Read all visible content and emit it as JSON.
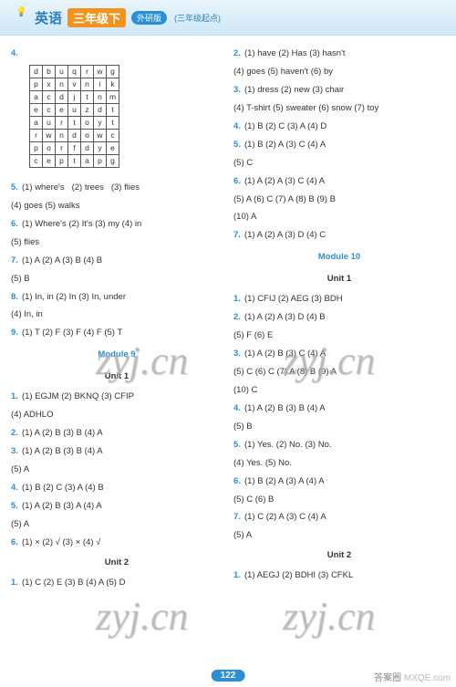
{
  "header": {
    "subject": "英语",
    "grade": "三年级下",
    "edition": "外研版",
    "sub": "(三年级起点)"
  },
  "page_number": "122",
  "corner_left": "答案圈",
  "corner_right": "MXQE.com",
  "watermark": "zyj.cn",
  "letter_grid": [
    [
      "d",
      "b",
      "u",
      "q",
      "r",
      "w",
      "g"
    ],
    [
      "p",
      "x",
      "n",
      "v",
      "n",
      "i",
      "k"
    ],
    [
      "a",
      "c",
      "d",
      "j",
      "t",
      "n",
      "m"
    ],
    [
      "e",
      "c",
      "e",
      "u",
      "z",
      "d",
      "t"
    ],
    [
      "a",
      "u",
      "r",
      "t",
      "o",
      "y",
      "t"
    ],
    [
      "r",
      "w",
      "n",
      "d",
      "o",
      "w",
      "c"
    ],
    [
      "p",
      "o",
      "r",
      "f",
      "d",
      "y",
      "e"
    ],
    [
      "c",
      "e",
      "p",
      "t",
      "a",
      "p",
      "g"
    ]
  ],
  "left": {
    "q4_num": "4.",
    "q5_num": "5.",
    "q5_parts": [
      "(1) where's",
      "(2) trees",
      "(3) flies"
    ],
    "q5_cont": "(4) goes   (5) walks",
    "q6_num": "6.",
    "q6_parts": "(1) Where's   (2) It's   (3) my   (4) in",
    "q6_cont": "(5) flies",
    "q7_num": "7.",
    "q7": "(1) A   (2) A   (3) B   (4) B",
    "q7_cont": "(5) B",
    "q8_num": "8.",
    "q8": "(1) In, in   (2) In   (3) In, under",
    "q8_cont": "(4) In, in",
    "q9_num": "9.",
    "q9": "(1) T   (2) F   (3) F   (4) F   (5) T",
    "module": "Module 9",
    "unit1": "Unit 1",
    "m9q1_num": "1.",
    "m9q1": "(1) EGJM   (2) BKNQ   (3) CFIP",
    "m9q1_cont": "(4) ADHLO",
    "m9q2_num": "2.",
    "m9q2": "(1) A   (2) B   (3) B   (4) A",
    "m9q3_num": "3.",
    "m9q3": "(1) A   (2) B   (3) B   (4) A",
    "m9q3_cont": "(5) A",
    "m9q4_num": "4.",
    "m9q4": "(1) B   (2) C   (3) A   (4) B",
    "m9q5_num": "5.",
    "m9q5": "(1) A   (2) B   (3) A   (4) A",
    "m9q5_cont": "(5) A",
    "m9q6_num": "6.",
    "m9q6": "(1) ×   (2) √   (3) ×   (4) √",
    "unit2": "Unit 2",
    "u2q1_num": "1.",
    "u2q1": "(1) C   (2) E   (3) B   (4) A   (5) D"
  },
  "right": {
    "q2_num": "2.",
    "q2": "(1) have   (2) Has   (3) hasn't",
    "q2_cont": "(4) goes   (5) haven't   (6) by",
    "q3_num": "3.",
    "q3": "(1) dress   (2) new   (3) chair",
    "q3_cont": "(4) T-shirt   (5) sweater   (6) snow   (7) toy",
    "q4_num": "4.",
    "q4": "(1) B   (2) C   (3) A   (4) D",
    "q5_num": "5.",
    "q5": "(1) B   (2) A   (3) C   (4) A",
    "q5_cont": "(5) C",
    "q6_num": "6.",
    "q6": "(1) A   (2) A   (3) C   (4) A",
    "q6_cont": "(5) A   (6) C   (7) A   (8) B   (9) B",
    "q6_cont2": "(10) A",
    "q7_num": "7.",
    "q7": "(1) A   (2) A   (3) D   (4) C",
    "module": "Module 10",
    "unit1": "Unit 1",
    "m10q1_num": "1.",
    "m10q1": "(1) CFIJ   (2) AEG   (3) BDH",
    "m10q2_num": "2.",
    "m10q2": "(1) A   (2) A   (3) D   (4) B",
    "m10q2_cont": "(5) F   (6) E",
    "m10q3_num": "3.",
    "m10q3": "(1) A   (2) B   (3) C   (4) A",
    "m10q3_cont": "(5) C   (6) C   (7) A   (8) B   (9) A",
    "m10q3_cont2": "(10) C",
    "m10q4_num": "4.",
    "m10q4": "(1) A   (2) B   (3) B   (4) A",
    "m10q4_cont": "(5) B",
    "m10q5_num": "5.",
    "m10q5": "(1) Yes.   (2) No.   (3) No.",
    "m10q5_cont": "(4) Yes.   (5) No.",
    "m10q6_num": "6.",
    "m10q6": "(1) B   (2) A   (3) A   (4) A",
    "m10q6_cont": "(5) C   (6) B",
    "m10q7_num": "7.",
    "m10q7": "(1) C   (2) A   (3) C   (4) A",
    "m10q7_cont": "(5) A",
    "unit2": "Unit 2",
    "u2q1_num": "1.",
    "u2q1": "(1) AEGJ   (2) BDHI   (3) CFKL"
  }
}
